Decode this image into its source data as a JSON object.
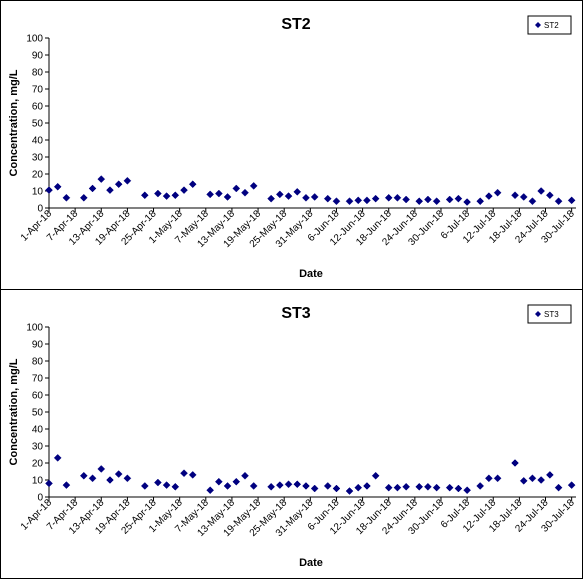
{
  "chart_data": [
    {
      "type": "scatter",
      "title": "ST2",
      "xlabel": "Date",
      "ylabel": "Concentration, mg/L",
      "ylim": [
        0,
        100
      ],
      "yticks": [
        0,
        10,
        20,
        30,
        40,
        50,
        60,
        70,
        80,
        90,
        100
      ],
      "xlim": [
        "2018-04-01",
        "2018-07-31"
      ],
      "xticks": [
        "1-Apr-18",
        "7-Apr-18",
        "13-Apr-18",
        "19-Apr-18",
        "25-Apr-18",
        "1-May-18",
        "7-May-18",
        "13-May-18",
        "19-May-18",
        "25-May-18",
        "31-May-18",
        "6-Jun-18",
        "12-Jun-18",
        "18-Jun-18",
        "24-Jun-18",
        "30-Jun-18",
        "6-Jul-18",
        "12-Jul-18",
        "18-Jul-18",
        "24-Jul-18",
        "30-Jul-18"
      ],
      "legend": "top-right",
      "marker": "diamond",
      "color": "#000080",
      "series": [
        {
          "name": "ST2",
          "x": [
            "2018-04-01",
            "2018-04-03",
            "2018-04-05",
            "2018-04-09",
            "2018-04-11",
            "2018-04-13",
            "2018-04-15",
            "2018-04-17",
            "2018-04-19",
            "2018-04-23",
            "2018-04-26",
            "2018-04-28",
            "2018-04-30",
            "2018-05-02",
            "2018-05-04",
            "2018-05-08",
            "2018-05-10",
            "2018-05-12",
            "2018-05-14",
            "2018-05-16",
            "2018-05-18",
            "2018-05-22",
            "2018-05-24",
            "2018-05-26",
            "2018-05-28",
            "2018-05-30",
            "2018-06-01",
            "2018-06-04",
            "2018-06-06",
            "2018-06-09",
            "2018-06-11",
            "2018-06-13",
            "2018-06-15",
            "2018-06-18",
            "2018-06-20",
            "2018-06-22",
            "2018-06-25",
            "2018-06-27",
            "2018-06-29",
            "2018-07-02",
            "2018-07-04",
            "2018-07-06",
            "2018-07-09",
            "2018-07-11",
            "2018-07-13",
            "2018-07-17",
            "2018-07-19",
            "2018-07-21",
            "2018-07-23",
            "2018-07-25",
            "2018-07-27",
            "2018-07-30"
          ],
          "y": [
            10.5,
            12.5,
            6,
            6,
            11.5,
            17,
            10.5,
            14,
            16,
            7.5,
            8.5,
            7,
            7.5,
            10.5,
            14,
            8,
            8.5,
            6.5,
            11.5,
            9,
            13,
            5.5,
            8,
            7,
            9.5,
            6,
            6.5,
            5.5,
            4,
            4,
            4.5,
            4.5,
            5.5,
            6,
            6,
            5,
            4,
            5,
            4,
            5,
            5.5,
            3.5,
            4,
            7,
            9,
            7.5,
            6.5,
            4,
            10,
            7.5,
            4,
            4.5
          ]
        }
      ]
    },
    {
      "type": "scatter",
      "title": "ST3",
      "xlabel": "Date",
      "ylabel": "Concentration, mg/L",
      "ylim": [
        0,
        100
      ],
      "yticks": [
        0,
        10,
        20,
        30,
        40,
        50,
        60,
        70,
        80,
        90,
        100
      ],
      "xlim": [
        "2018-04-01",
        "2018-07-31"
      ],
      "xticks": [
        "1-Apr-18",
        "7-Apr-18",
        "13-Apr-18",
        "19-Apr-18",
        "25-Apr-18",
        "1-May-18",
        "7-May-18",
        "13-May-18",
        "19-May-18",
        "25-May-18",
        "31-May-18",
        "6-Jun-18",
        "12-Jun-18",
        "18-Jun-18",
        "24-Jun-18",
        "30-Jun-18",
        "6-Jul-18",
        "12-Jul-18",
        "18-Jul-18",
        "24-Jul-18",
        "30-Jul-18"
      ],
      "legend": "top-right",
      "marker": "diamond",
      "color": "#000080",
      "series": [
        {
          "name": "ST3",
          "x": [
            "2018-04-01",
            "2018-04-03",
            "2018-04-05",
            "2018-04-09",
            "2018-04-11",
            "2018-04-13",
            "2018-04-15",
            "2018-04-17",
            "2018-04-19",
            "2018-04-23",
            "2018-04-26",
            "2018-04-28",
            "2018-04-30",
            "2018-05-02",
            "2018-05-04",
            "2018-05-08",
            "2018-05-10",
            "2018-05-12",
            "2018-05-14",
            "2018-05-16",
            "2018-05-18",
            "2018-05-22",
            "2018-05-24",
            "2018-05-26",
            "2018-05-28",
            "2018-05-30",
            "2018-06-01",
            "2018-06-04",
            "2018-06-06",
            "2018-06-09",
            "2018-06-11",
            "2018-06-13",
            "2018-06-15",
            "2018-06-18",
            "2018-06-20",
            "2018-06-22",
            "2018-06-25",
            "2018-06-27",
            "2018-06-29",
            "2018-07-02",
            "2018-07-04",
            "2018-07-06",
            "2018-07-09",
            "2018-07-11",
            "2018-07-13",
            "2018-07-17",
            "2018-07-19",
            "2018-07-21",
            "2018-07-23",
            "2018-07-25",
            "2018-07-27",
            "2018-07-30"
          ],
          "y": [
            8,
            23,
            7,
            12.5,
            11,
            16.5,
            10,
            13.5,
            11,
            6.5,
            8.5,
            7,
            6,
            14,
            13,
            4,
            9,
            6.5,
            9,
            12.5,
            6.5,
            6,
            7,
            7.5,
            7.5,
            6.5,
            5,
            6.5,
            5,
            3.5,
            5.5,
            6.5,
            12.5,
            5.5,
            5.5,
            6,
            6,
            6,
            5.5,
            5.5,
            5,
            4,
            6.5,
            11,
            11,
            20,
            9.5,
            11,
            10,
            13,
            5.5,
            7
          ]
        }
      ]
    }
  ]
}
